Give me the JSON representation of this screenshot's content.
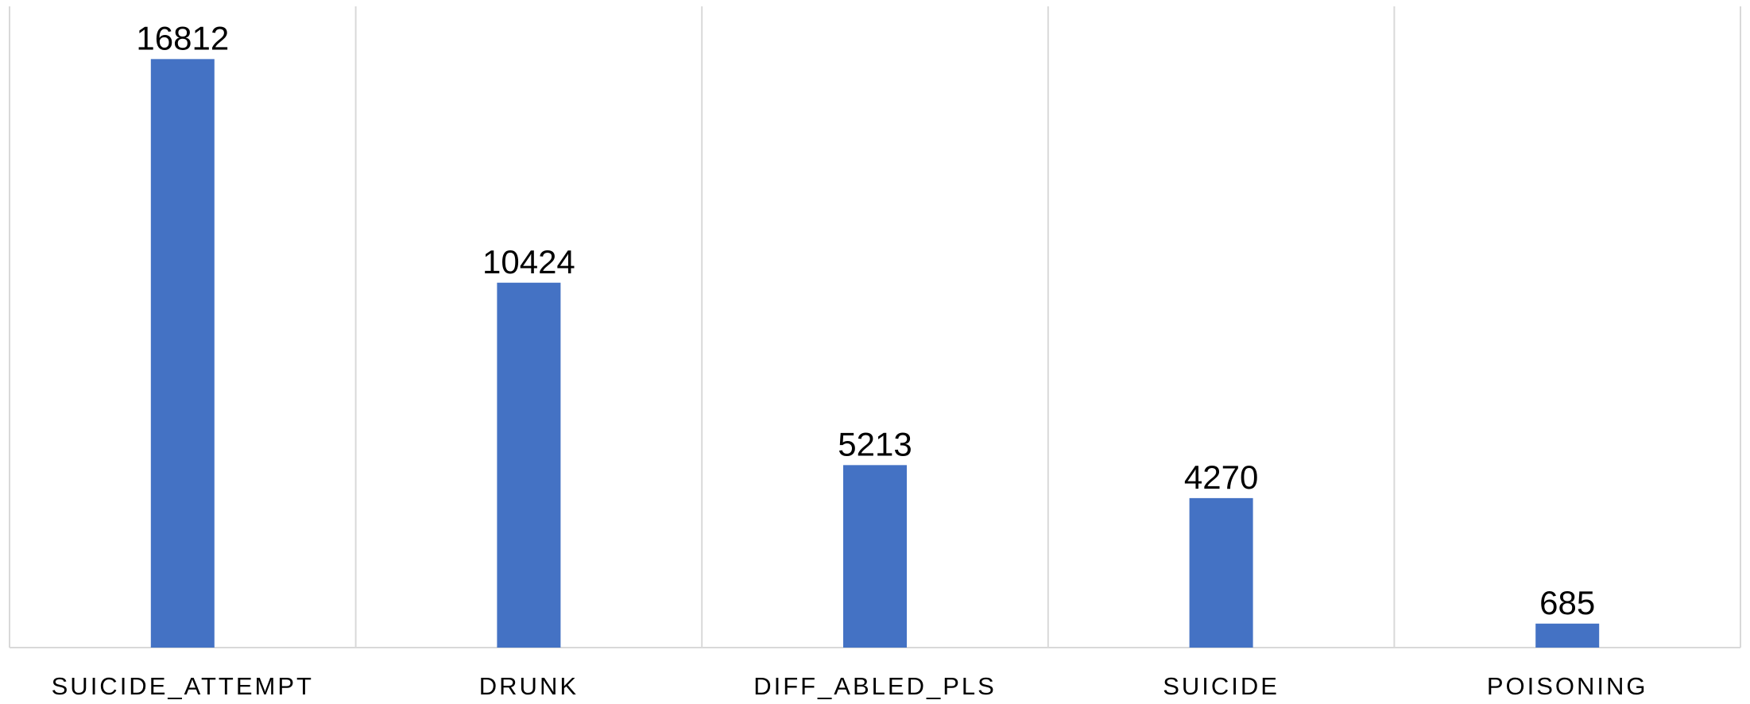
{
  "chart_data": {
    "type": "bar",
    "categories": [
      "SUICIDE_ATTEMPT",
      "DRUNK",
      "DIFF_ABLED_PLS",
      "SUICIDE",
      "POISONING"
    ],
    "values": [
      16812,
      10424,
      5213,
      4270,
      685
    ],
    "data_labels": [
      "16812",
      "10424",
      "5213",
      "4270",
      "685"
    ],
    "title": "",
    "xlabel": "",
    "ylabel": "",
    "ylim": [
      0,
      18000
    ],
    "grid": "vertical category separators",
    "legend": "none",
    "colors": {
      "bar": "#4472C4",
      "grid": "#D9D9D9",
      "text": "#000000"
    }
  }
}
